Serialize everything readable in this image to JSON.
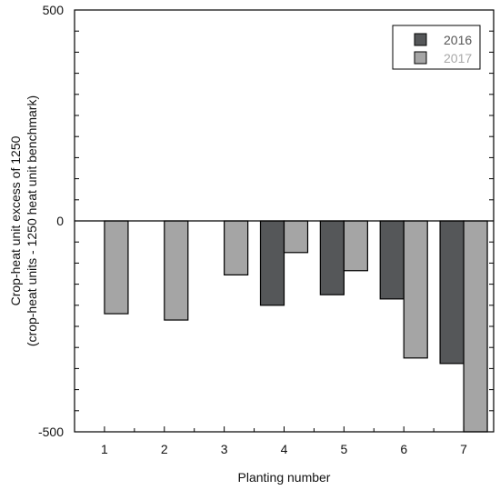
{
  "chart_data": {
    "type": "bar",
    "categories": [
      "1",
      "2",
      "3",
      "4",
      "5",
      "6",
      "7"
    ],
    "series": [
      {
        "name": "2016",
        "color": "#555759",
        "values": [
          null,
          null,
          null,
          -200,
          -175,
          -185,
          -338
        ]
      },
      {
        "name": "2017",
        "color": "#a5a5a5",
        "values": [
          -220,
          -235,
          -128,
          -75,
          -118,
          -325,
          -500
        ]
      }
    ],
    "title": "",
    "xlabel": "Planting number",
    "ylabel_line1": "Crop-heat unit excess of 1250",
    "ylabel_line2": "(crop-heat units - 1250 heat unit benchmark)",
    "ylim": [
      -500,
      500
    ],
    "yticks_labeled": [
      500,
      0,
      -500
    ],
    "yticks_labels": [
      "500",
      "0",
      "-500"
    ],
    "minor_tick_step": 50,
    "legend": {
      "placement": "top-right",
      "entries": [
        "2016",
        "2017"
      ],
      "text_colors": [
        "#555555",
        "#a8a8a8"
      ]
    },
    "grid": false,
    "zero_line": true
  }
}
